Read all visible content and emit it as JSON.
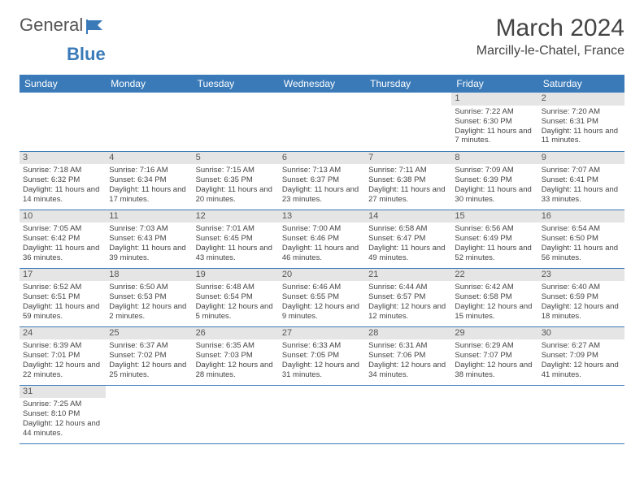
{
  "logo": {
    "text1": "General",
    "text2": "Blue"
  },
  "title": "March 2024",
  "location": "Marcilly-le-Chatel, France",
  "colors": {
    "header_bg": "#3a7ab8",
    "daynum_bg": "#e5e5e5",
    "rule": "#3a7ab8"
  },
  "weekdays": [
    "Sunday",
    "Monday",
    "Tuesday",
    "Wednesday",
    "Thursday",
    "Friday",
    "Saturday"
  ],
  "weeks": [
    [
      null,
      null,
      null,
      null,
      null,
      {
        "n": "1",
        "sr": "Sunrise: 7:22 AM",
        "ss": "Sunset: 6:30 PM",
        "dl": "Daylight: 11 hours and 7 minutes."
      },
      {
        "n": "2",
        "sr": "Sunrise: 7:20 AM",
        "ss": "Sunset: 6:31 PM",
        "dl": "Daylight: 11 hours and 11 minutes."
      }
    ],
    [
      {
        "n": "3",
        "sr": "Sunrise: 7:18 AM",
        "ss": "Sunset: 6:32 PM",
        "dl": "Daylight: 11 hours and 14 minutes."
      },
      {
        "n": "4",
        "sr": "Sunrise: 7:16 AM",
        "ss": "Sunset: 6:34 PM",
        "dl": "Daylight: 11 hours and 17 minutes."
      },
      {
        "n": "5",
        "sr": "Sunrise: 7:15 AM",
        "ss": "Sunset: 6:35 PM",
        "dl": "Daylight: 11 hours and 20 minutes."
      },
      {
        "n": "6",
        "sr": "Sunrise: 7:13 AM",
        "ss": "Sunset: 6:37 PM",
        "dl": "Daylight: 11 hours and 23 minutes."
      },
      {
        "n": "7",
        "sr": "Sunrise: 7:11 AM",
        "ss": "Sunset: 6:38 PM",
        "dl": "Daylight: 11 hours and 27 minutes."
      },
      {
        "n": "8",
        "sr": "Sunrise: 7:09 AM",
        "ss": "Sunset: 6:39 PM",
        "dl": "Daylight: 11 hours and 30 minutes."
      },
      {
        "n": "9",
        "sr": "Sunrise: 7:07 AM",
        "ss": "Sunset: 6:41 PM",
        "dl": "Daylight: 11 hours and 33 minutes."
      }
    ],
    [
      {
        "n": "10",
        "sr": "Sunrise: 7:05 AM",
        "ss": "Sunset: 6:42 PM",
        "dl": "Daylight: 11 hours and 36 minutes."
      },
      {
        "n": "11",
        "sr": "Sunrise: 7:03 AM",
        "ss": "Sunset: 6:43 PM",
        "dl": "Daylight: 11 hours and 39 minutes."
      },
      {
        "n": "12",
        "sr": "Sunrise: 7:01 AM",
        "ss": "Sunset: 6:45 PM",
        "dl": "Daylight: 11 hours and 43 minutes."
      },
      {
        "n": "13",
        "sr": "Sunrise: 7:00 AM",
        "ss": "Sunset: 6:46 PM",
        "dl": "Daylight: 11 hours and 46 minutes."
      },
      {
        "n": "14",
        "sr": "Sunrise: 6:58 AM",
        "ss": "Sunset: 6:47 PM",
        "dl": "Daylight: 11 hours and 49 minutes."
      },
      {
        "n": "15",
        "sr": "Sunrise: 6:56 AM",
        "ss": "Sunset: 6:49 PM",
        "dl": "Daylight: 11 hours and 52 minutes."
      },
      {
        "n": "16",
        "sr": "Sunrise: 6:54 AM",
        "ss": "Sunset: 6:50 PM",
        "dl": "Daylight: 11 hours and 56 minutes."
      }
    ],
    [
      {
        "n": "17",
        "sr": "Sunrise: 6:52 AM",
        "ss": "Sunset: 6:51 PM",
        "dl": "Daylight: 11 hours and 59 minutes."
      },
      {
        "n": "18",
        "sr": "Sunrise: 6:50 AM",
        "ss": "Sunset: 6:53 PM",
        "dl": "Daylight: 12 hours and 2 minutes."
      },
      {
        "n": "19",
        "sr": "Sunrise: 6:48 AM",
        "ss": "Sunset: 6:54 PM",
        "dl": "Daylight: 12 hours and 5 minutes."
      },
      {
        "n": "20",
        "sr": "Sunrise: 6:46 AM",
        "ss": "Sunset: 6:55 PM",
        "dl": "Daylight: 12 hours and 9 minutes."
      },
      {
        "n": "21",
        "sr": "Sunrise: 6:44 AM",
        "ss": "Sunset: 6:57 PM",
        "dl": "Daylight: 12 hours and 12 minutes."
      },
      {
        "n": "22",
        "sr": "Sunrise: 6:42 AM",
        "ss": "Sunset: 6:58 PM",
        "dl": "Daylight: 12 hours and 15 minutes."
      },
      {
        "n": "23",
        "sr": "Sunrise: 6:40 AM",
        "ss": "Sunset: 6:59 PM",
        "dl": "Daylight: 12 hours and 18 minutes."
      }
    ],
    [
      {
        "n": "24",
        "sr": "Sunrise: 6:39 AM",
        "ss": "Sunset: 7:01 PM",
        "dl": "Daylight: 12 hours and 22 minutes."
      },
      {
        "n": "25",
        "sr": "Sunrise: 6:37 AM",
        "ss": "Sunset: 7:02 PM",
        "dl": "Daylight: 12 hours and 25 minutes."
      },
      {
        "n": "26",
        "sr": "Sunrise: 6:35 AM",
        "ss": "Sunset: 7:03 PM",
        "dl": "Daylight: 12 hours and 28 minutes."
      },
      {
        "n": "27",
        "sr": "Sunrise: 6:33 AM",
        "ss": "Sunset: 7:05 PM",
        "dl": "Daylight: 12 hours and 31 minutes."
      },
      {
        "n": "28",
        "sr": "Sunrise: 6:31 AM",
        "ss": "Sunset: 7:06 PM",
        "dl": "Daylight: 12 hours and 34 minutes."
      },
      {
        "n": "29",
        "sr": "Sunrise: 6:29 AM",
        "ss": "Sunset: 7:07 PM",
        "dl": "Daylight: 12 hours and 38 minutes."
      },
      {
        "n": "30",
        "sr": "Sunrise: 6:27 AM",
        "ss": "Sunset: 7:09 PM",
        "dl": "Daylight: 12 hours and 41 minutes."
      }
    ],
    [
      {
        "n": "31",
        "sr": "Sunrise: 7:25 AM",
        "ss": "Sunset: 8:10 PM",
        "dl": "Daylight: 12 hours and 44 minutes."
      },
      null,
      null,
      null,
      null,
      null,
      null
    ]
  ]
}
